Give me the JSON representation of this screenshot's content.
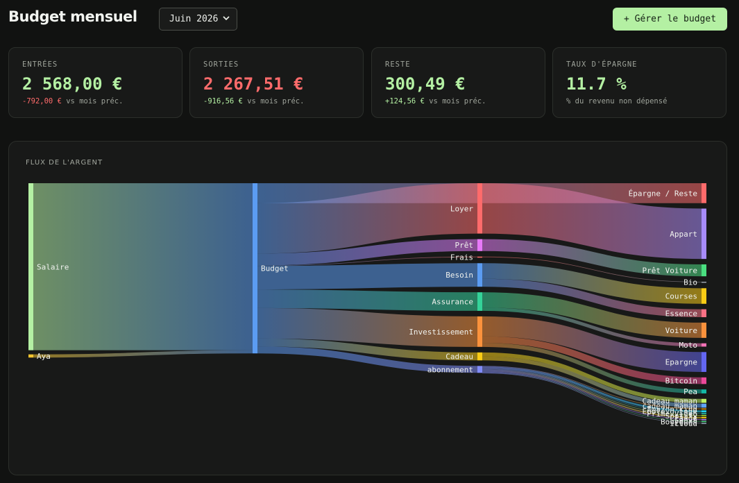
{
  "header": {
    "title": "Budget mensuel",
    "month_selected": "Juin 2026",
    "manage_button": "+ Gérer le budget"
  },
  "cards": [
    {
      "label": "ENTRÉES",
      "value": "2 568,00 €",
      "value_color": "#b4f0a3",
      "delta": "-792,00 €",
      "delta_color": "#ff6b6b",
      "suffix": "vs mois préc."
    },
    {
      "label": "SORTIES",
      "value": "2 267,51 €",
      "value_color": "#ff6b6b",
      "delta": "-916,56 €",
      "delta_color": "#b4f0a3",
      "suffix": "vs mois préc."
    },
    {
      "label": "RESTE",
      "value": "300,49 €",
      "value_color": "#b4f0a3",
      "delta": "+124,56 €",
      "delta_color": "#b4f0a3",
      "suffix": "vs mois préc."
    },
    {
      "label": "TAUX D'ÉPARGNE",
      "value": "11.7 %",
      "value_color": "#b4f0a3",
      "delta": "",
      "delta_color": "#b4f0a3",
      "suffix": "% du revenu non dépensé"
    }
  ],
  "flow": {
    "title": "FLUX DE L'ARGENT",
    "nodes": [
      {
        "name": "Salaire",
        "color": "#b4f0a3"
      },
      {
        "name": "Aya",
        "color": "#f4c430"
      },
      {
        "name": "Budget",
        "color": "#5b9cf2"
      },
      {
        "name": "Épargne / Reste",
        "color": "#ff6b6b"
      },
      {
        "name": "Loyer",
        "color": "#ff6b6b"
      },
      {
        "name": "Prêt",
        "color": "#e879f9"
      },
      {
        "name": "Frais",
        "color": "#ff6b6b"
      },
      {
        "name": "Besoin",
        "color": "#5b9cf2"
      },
      {
        "name": "Assurance",
        "color": "#34d399"
      },
      {
        "name": "Investissement",
        "color": "#fb923c"
      },
      {
        "name": "Cadeau",
        "color": "#facc15"
      },
      {
        "name": "abonnement",
        "color": "#818cf8"
      },
      {
        "name": "Appart",
        "color": "#a78bfa"
      },
      {
        "name": "Prêt Voiture",
        "color": "#4ade80"
      },
      {
        "name": "Bio",
        "color": "#9ca3af"
      },
      {
        "name": "Courses",
        "color": "#facc15"
      },
      {
        "name": "Essence",
        "color": "#fb7185"
      },
      {
        "name": "Voiture",
        "color": "#fb923c"
      },
      {
        "name": "Moto",
        "color": "#f472b6"
      },
      {
        "name": "Epargne",
        "color": "#6366f1"
      },
      {
        "name": "Bitcoin",
        "color": "#ec4899"
      },
      {
        "name": "Pea",
        "color": "#14b8a6"
      },
      {
        "name": "Cadeau maman",
        "color": "#bef264"
      },
      {
        "name": "cadeau maman",
        "color": "#60a5fa"
      },
      {
        "name": "Amazon kind",
        "color": "#f59e0b"
      },
      {
        "name": "Ecole d'ingé",
        "color": "#22d3ee"
      },
      {
        "name": "Prime Vidéo",
        "color": "#2dd4bf"
      },
      {
        "name": "Spotify",
        "color": "#a3e635"
      },
      {
        "name": "Claude",
        "color": "#facc15"
      },
      {
        "name": "Canva",
        "color": "#c084fc"
      },
      {
        "name": "Bouygues",
        "color": "#4ade80"
      },
      {
        "name": "iCloud",
        "color": "#94a3b8"
      }
    ],
    "links": [
      {
        "source": "Salaire",
        "target": "Budget",
        "value": 2520
      },
      {
        "source": "Aya",
        "target": "Budget",
        "value": 48
      },
      {
        "source": "Budget",
        "target": "Épargne / Reste",
        "value": 300.49
      },
      {
        "source": "Budget",
        "target": "Loyer",
        "value": 760
      },
      {
        "source": "Budget",
        "target": "Prêt",
        "value": 180
      },
      {
        "source": "Budget",
        "target": "Frais",
        "value": 8
      },
      {
        "source": "Budget",
        "target": "Besoin",
        "value": 355
      },
      {
        "source": "Budget",
        "target": "Assurance",
        "value": 280
      },
      {
        "source": "Budget",
        "target": "Investissement",
        "value": 460
      },
      {
        "source": "Budget",
        "target": "Cadeau",
        "value": 120
      },
      {
        "source": "Budget",
        "target": "abonnement",
        "value": 104.51
      },
      {
        "source": "Loyer",
        "target": "Appart",
        "value": 760
      },
      {
        "source": "Prêt",
        "target": "Prêt Voiture",
        "value": 180
      },
      {
        "source": "Frais",
        "target": "Bio",
        "value": 8
      },
      {
        "source": "Besoin",
        "target": "Courses",
        "value": 235
      },
      {
        "source": "Besoin",
        "target": "Essence",
        "value": 120
      },
      {
        "source": "Assurance",
        "target": "Voiture",
        "value": 230
      },
      {
        "source": "Assurance",
        "target": "Moto",
        "value": 50
      },
      {
        "source": "Investissement",
        "target": "Epargne",
        "value": 300
      },
      {
        "source": "Investissement",
        "target": "Bitcoin",
        "value": 100
      },
      {
        "source": "Investissement",
        "target": "Pea",
        "value": 60
      },
      {
        "source": "Cadeau",
        "target": "Cadeau maman",
        "value": 60
      },
      {
        "source": "Cadeau",
        "target": "cadeau maman",
        "value": 60
      },
      {
        "source": "abonnement",
        "target": "Amazon kind",
        "value": 10
      },
      {
        "source": "abonnement",
        "target": "Ecole d'ingé",
        "value": 30
      },
      {
        "source": "abonnement",
        "target": "Prime Vidéo",
        "value": 7
      },
      {
        "source": "abonnement",
        "target": "Spotify",
        "value": 11.99
      },
      {
        "source": "abonnement",
        "target": "Claude",
        "value": 21.5
      },
      {
        "source": "abonnement",
        "target": "Canva",
        "value": 12
      },
      {
        "source": "abonnement",
        "target": "Bouygues",
        "value": 9.99
      },
      {
        "source": "abonnement",
        "target": "iCloud",
        "value": 2.03
      }
    ]
  }
}
